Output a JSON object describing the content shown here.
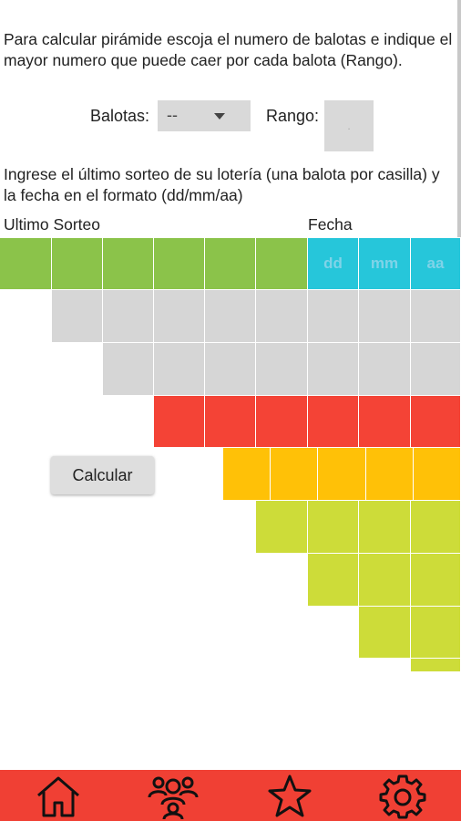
{
  "intro_text": "Para calcular pirámide escoja el numero de balotas e indique el mayor numero que puede caer por cada balota (Rango).",
  "balotas": {
    "label": "Balotas:",
    "selected": "--"
  },
  "rango": {
    "label": "Rango:",
    "placeholder": "."
  },
  "instructions": "Ingrese el último sorteo de su lotería (una balota por casilla) y la fecha en el formato (dd/mm/aa)",
  "headers": {
    "ultimo_sorteo": "Ultimo Sorteo",
    "fecha": "Fecha"
  },
  "date_placeholders": {
    "dd": "dd",
    "mm": "mm",
    "aa": "aa"
  },
  "calcular_label": "Calcular",
  "nav": [
    "home-icon",
    "users-icon",
    "star-icon",
    "settings-icon"
  ],
  "colors": {
    "green": "#8bc34a",
    "cyan": "#26c6da",
    "gray": "#d6d6d6",
    "red": "#f44336",
    "amber": "#ffc107",
    "lime": "#cddc39",
    "nav": "#f04034"
  }
}
